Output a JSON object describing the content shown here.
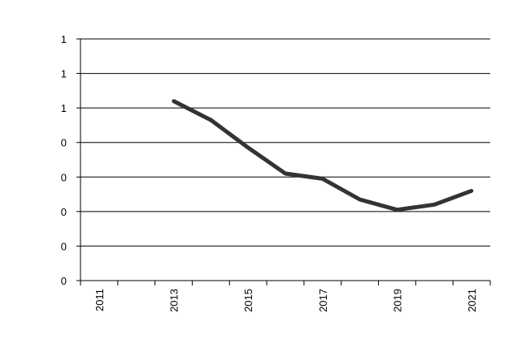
{
  "chart_data": {
    "type": "line",
    "title": "",
    "xlabel": "",
    "ylabel": "",
    "x_tick_labels": [
      "2011",
      "2013",
      "2015",
      "2017",
      "2019",
      "2021"
    ],
    "y_tick_labels": [
      "0",
      "0",
      "0",
      "0",
      "0",
      "1",
      "1",
      "1"
    ],
    "x_range": [
      2011,
      2021
    ],
    "ylim": [
      0,
      1.4
    ],
    "grid": "horizontal",
    "legend": "none",
    "series": [
      {
        "color": "#333333",
        "points": [
          {
            "x": 2013.5,
            "y": 1.04
          },
          {
            "x": 2014.5,
            "y": 0.93
          },
          {
            "x": 2015.5,
            "y": 0.77
          },
          {
            "x": 2016.5,
            "y": 0.62
          },
          {
            "x": 2017.5,
            "y": 0.59
          },
          {
            "x": 2018.5,
            "y": 0.47
          },
          {
            "x": 2019.5,
            "y": 0.41
          },
          {
            "x": 2020.5,
            "y": 0.44
          },
          {
            "x": 2021.5,
            "y": 0.52
          }
        ]
      }
    ]
  }
}
